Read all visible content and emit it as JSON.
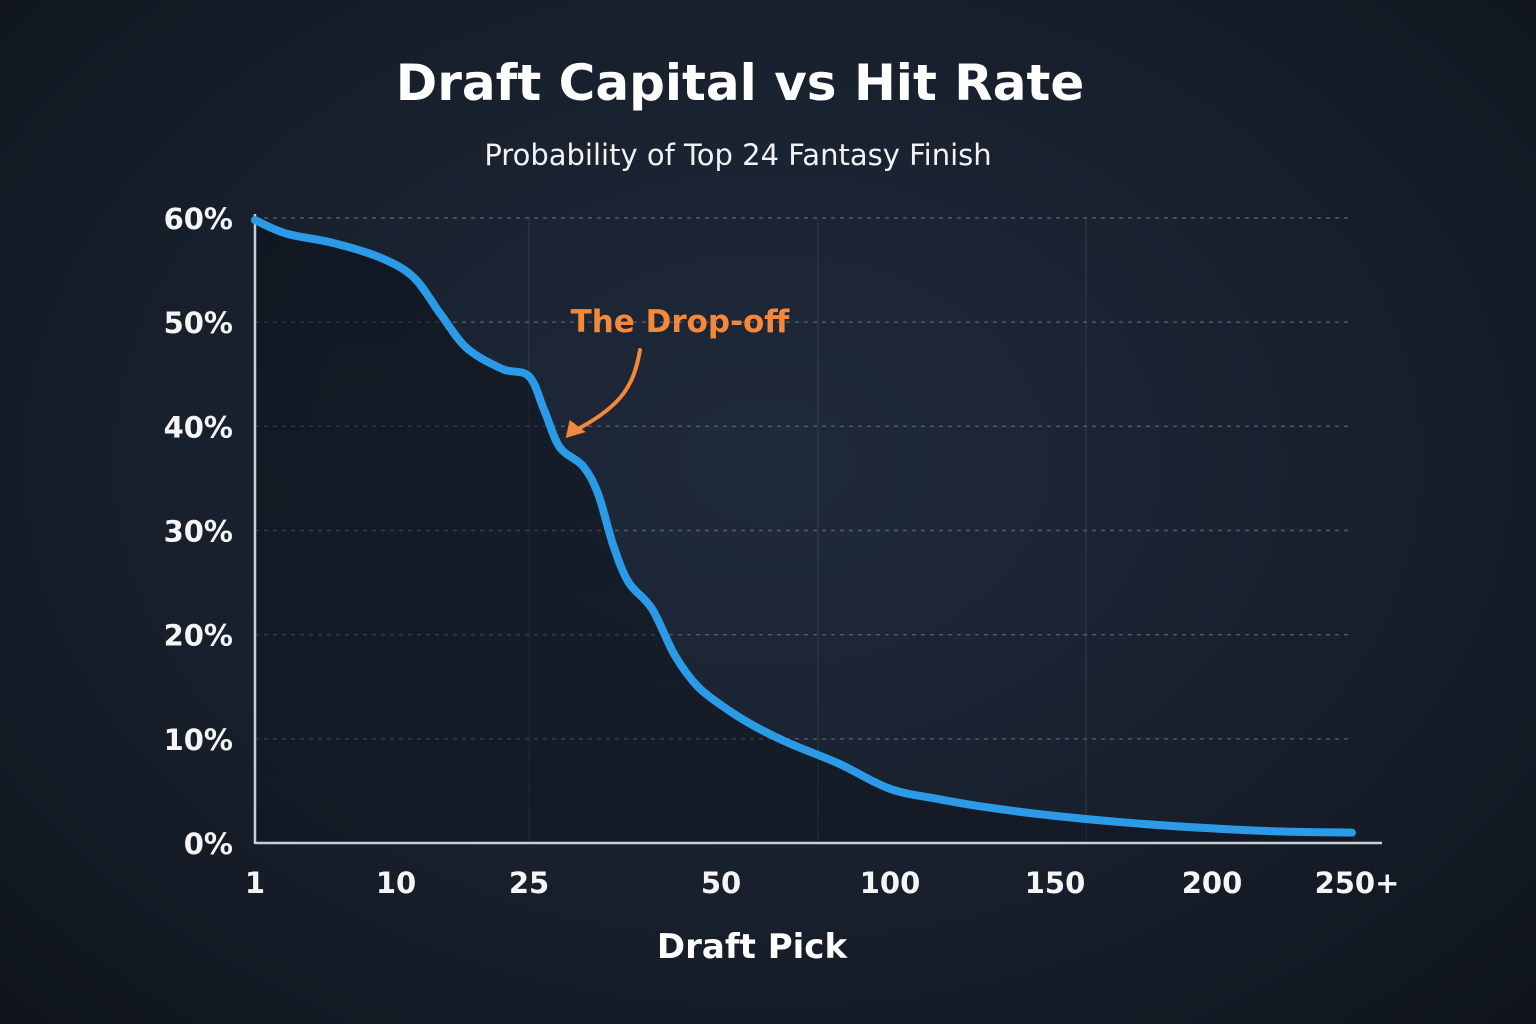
{
  "chart_data": {
    "type": "line",
    "title": "Draft Capital vs Hit Rate",
    "subtitle": "Probability of Top 24 Fantasy Finish",
    "xlabel": "Draft Pick",
    "ylabel": "",
    "x_tick_labels": [
      "1",
      "10",
      "25",
      "50",
      "100",
      "150",
      "200",
      "250+"
    ],
    "y_tick_labels": [
      "0%",
      "10%",
      "20%",
      "30%",
      "40%",
      "50%",
      "60%"
    ],
    "y_ticks": [
      0,
      10,
      20,
      30,
      40,
      50,
      60
    ],
    "ylim": [
      0,
      60
    ],
    "grid": true,
    "series": [
      {
        "points": [
          [
            1,
            59.8
          ],
          [
            3,
            58.5
          ],
          [
            6,
            57.6
          ],
          [
            9,
            56.2
          ],
          [
            12,
            54.3
          ],
          [
            15,
            50.8
          ],
          [
            18,
            47.5
          ],
          [
            22,
            45.5
          ],
          [
            25,
            44.8
          ],
          [
            27,
            41.5
          ],
          [
            29,
            38.0
          ],
          [
            32,
            36.2
          ],
          [
            34,
            33.5
          ],
          [
            36,
            28.5
          ],
          [
            38,
            25.0
          ],
          [
            41,
            22.5
          ],
          [
            44,
            18.0
          ],
          [
            47,
            15.0
          ],
          [
            52,
            12.8
          ],
          [
            60,
            11.2
          ],
          [
            70,
            9.6
          ],
          [
            85,
            7.6
          ],
          [
            100,
            5.2
          ],
          [
            115,
            4.2
          ],
          [
            130,
            3.4
          ],
          [
            150,
            2.6
          ],
          [
            175,
            1.9
          ],
          [
            200,
            1.4
          ],
          [
            225,
            1.1
          ],
          [
            250,
            1.0
          ]
        ]
      }
    ],
    "annotation": {
      "text": "The Drop-off",
      "x": 29,
      "y": 38.5
    },
    "colors": {
      "line": "#2b9be8",
      "annotation": "#f5883a",
      "grid": "#5b6577",
      "axis": "#c9ced6"
    }
  }
}
